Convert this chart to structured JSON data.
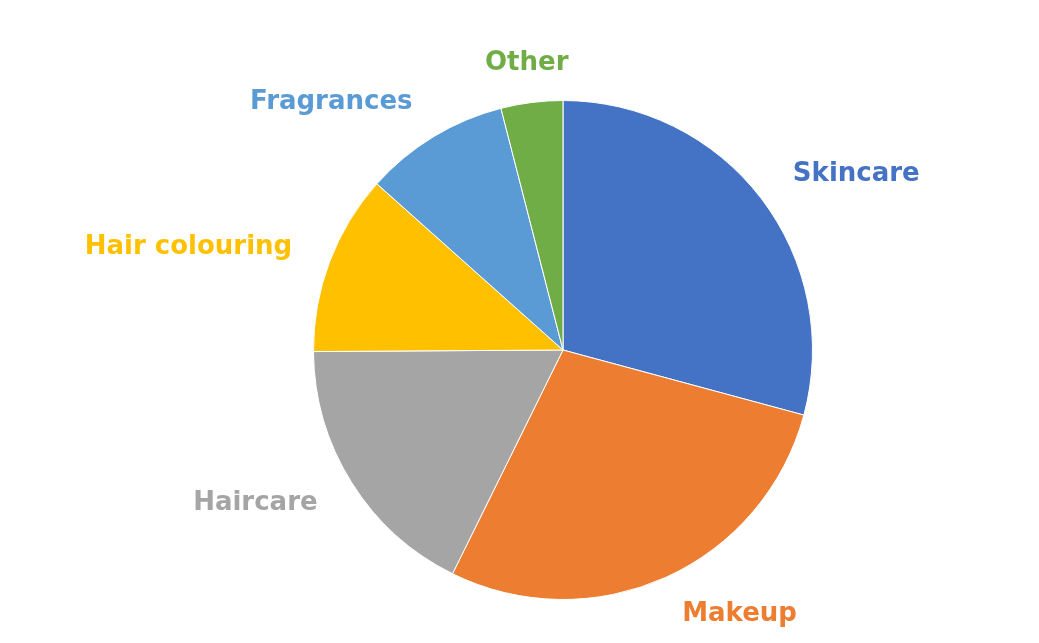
{
  "chart_data": {
    "type": "pie",
    "categories": [
      "Skincare",
      "Makeup",
      "Haircare",
      "Hair colouring",
      "Fragrances",
      "Other"
    ],
    "values": [
      29.2,
      28.1,
      17.6,
      11.7,
      9.4,
      4
    ],
    "colors": [
      "#4472c4",
      "#ed7d31",
      "#a5a5a5",
      "#ffc000",
      "#5b9bd5",
      "#70ad47"
    ],
    "legend": false
  }
}
